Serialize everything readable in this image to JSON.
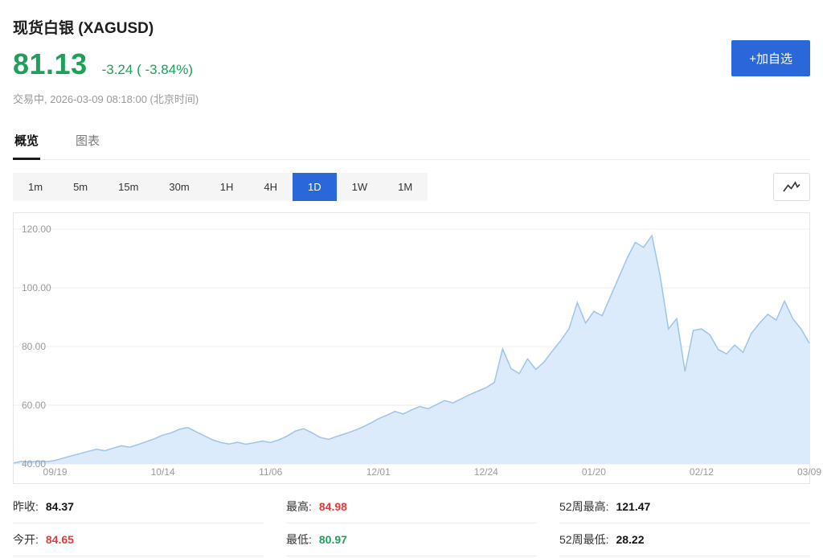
{
  "header": {
    "title": "现货白银 (XAGUSD)",
    "price": "81.13",
    "change": "-3.24 ( -3.84%)",
    "status": "交易中, 2026-03-09 08:18:00 (北京时间)",
    "watchlist_button": "+加自选"
  },
  "tabs": [
    {
      "label": "概览",
      "active": true
    },
    {
      "label": "图表",
      "active": false
    }
  ],
  "toolbar": {
    "intervals": [
      {
        "label": "1m",
        "active": false
      },
      {
        "label": "5m",
        "active": false
      },
      {
        "label": "15m",
        "active": false
      },
      {
        "label": "30m",
        "active": false
      },
      {
        "label": "1H",
        "active": false
      },
      {
        "label": "4H",
        "active": false
      },
      {
        "label": "1D",
        "active": true
      },
      {
        "label": "1W",
        "active": false
      },
      {
        "label": "1M",
        "active": false
      }
    ],
    "chart_style_icon": "line-chart-icon"
  },
  "stats": [
    {
      "name": "prev-close",
      "label": "昨收:",
      "value": "84.37",
      "color": "dark"
    },
    {
      "name": "day-high",
      "label": "最高:",
      "value": "84.98",
      "color": "red"
    },
    {
      "name": "week52-high",
      "label": "52周最高:",
      "value": "121.47",
      "color": "dark"
    },
    {
      "name": "today-open",
      "label": "今开:",
      "value": "84.65",
      "color": "red"
    },
    {
      "name": "day-low",
      "label": "最低:",
      "value": "80.97",
      "color": "green"
    },
    {
      "name": "week52-low",
      "label": "52周最低:",
      "value": "28.22",
      "color": "dark"
    }
  ],
  "colors": {
    "down_green": "#1CA05A",
    "up_red": "#E03C3C",
    "accent_blue": "#2A68D9",
    "area_fill": "#DCEBFB",
    "area_line": "#9EC4EC",
    "gridline": "#EDEDED"
  },
  "chart_data": {
    "type": "area",
    "series_name": "XAGUSD 1D",
    "ylim": [
      40,
      120
    ],
    "grid": "horizontal",
    "legend": false,
    "y_ticks": [
      {
        "value": 120,
        "label": "120.00"
      },
      {
        "value": 100,
        "label": "100.00"
      },
      {
        "value": 80,
        "label": "80.00"
      },
      {
        "value": 60,
        "label": "60.00"
      },
      {
        "value": 40,
        "label": "40.00"
      }
    ],
    "x_ticks": [
      {
        "label": "09/19",
        "index": 5
      },
      {
        "label": "10/14",
        "index": 18
      },
      {
        "label": "11/06",
        "index": 31
      },
      {
        "label": "12/01",
        "index": 44
      },
      {
        "label": "12/24",
        "index": 57
      },
      {
        "label": "01/20",
        "index": 70
      },
      {
        "label": "02/12",
        "index": 83
      },
      {
        "label": "03/09",
        "index": 96
      }
    ],
    "values": [
      40.3,
      40.9,
      40.6,
      41.0,
      40.8,
      41.2,
      42.0,
      42.8,
      43.5,
      44.3,
      45.0,
      44.5,
      45.4,
      46.2,
      45.7,
      46.6,
      47.6,
      48.6,
      49.8,
      50.6,
      51.8,
      52.4,
      51.0,
      49.6,
      48.2,
      47.3,
      46.8,
      47.4,
      46.7,
      47.2,
      47.8,
      47.3,
      48.2,
      49.5,
      51.2,
      52.0,
      50.6,
      49.0,
      48.4,
      49.4,
      50.3,
      51.3,
      52.4,
      53.8,
      55.4,
      56.6,
      57.9,
      57.0,
      58.4,
      59.6,
      58.8,
      60.2,
      61.6,
      60.8,
      62.2,
      63.6,
      64.8,
      66.0,
      67.8,
      79.2,
      72.5,
      70.8,
      75.8,
      72.2,
      74.8,
      78.5,
      82.0,
      86.0,
      95.0,
      88.0,
      92.0,
      90.5,
      97.0,
      103.5,
      110.0,
      115.5,
      113.8,
      117.8,
      104.0,
      86.0,
      89.5,
      71.5,
      85.5,
      86.0,
      84.0,
      79.0,
      77.5,
      80.5,
      78.0,
      84.5,
      88.0,
      91.0,
      89.0,
      95.5,
      89.5,
      86.0,
      81.13
    ]
  }
}
